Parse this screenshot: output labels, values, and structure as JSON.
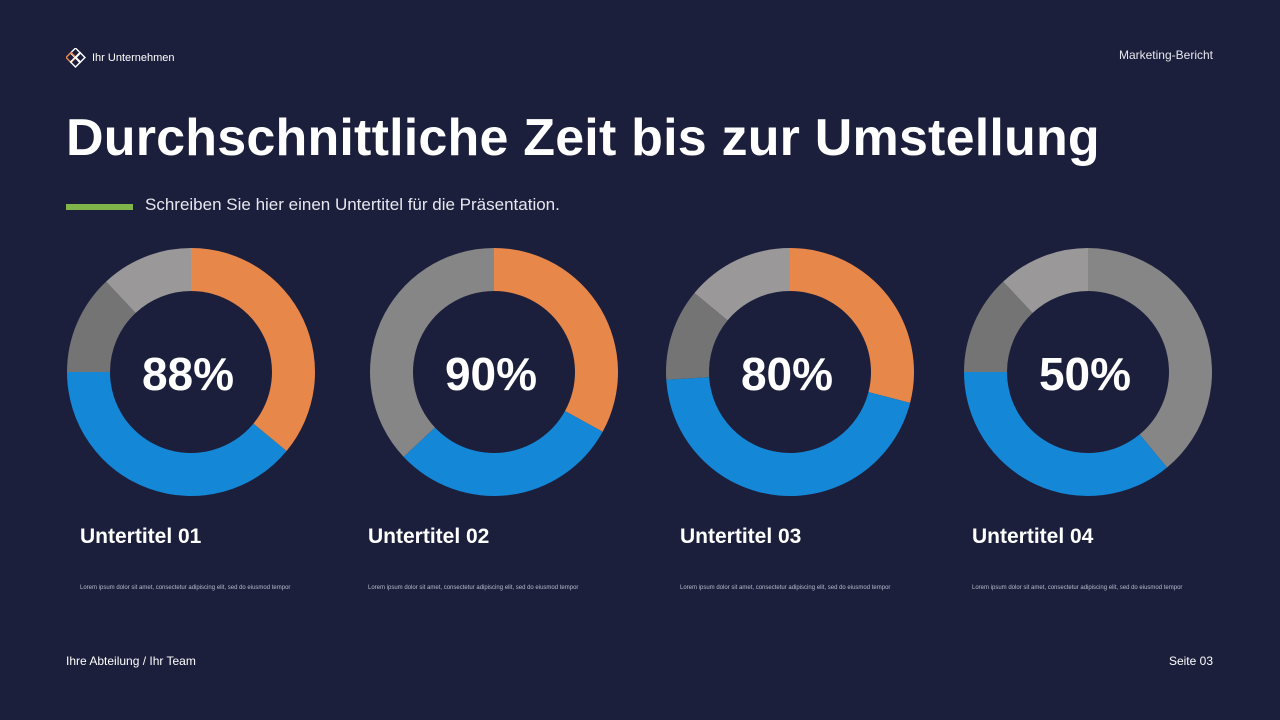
{
  "header": {
    "company": "Ihr Unternehmen",
    "report_label": "Marketing-Bericht"
  },
  "title": "Durchschnittliche Zeit bis zur Umstellung",
  "subtitle": "Schreiben Sie hier einen Untertitel für die Präsentation.",
  "colors": {
    "background": "#1c1f3b",
    "accent_green": "#7fb549",
    "orange": "#e8874a",
    "blue": "#1487d6",
    "gray_dark": "#747474",
    "gray_mid": "#868686",
    "gray_light": "#9a9898"
  },
  "chart_data": [
    {
      "type": "pie",
      "variant": "donut",
      "center_label": "88%",
      "slices": [
        {
          "color": "orange",
          "value": 36
        },
        {
          "color": "blue",
          "value": 39
        },
        {
          "color": "gray_dark",
          "value": 13
        },
        {
          "color": "gray_light",
          "value": 12
        }
      ],
      "subtitle": "Untertitel 01",
      "description": "Lorem ipsum dolor sit amet, consectetur adipiscing elit, sed do eiusmod tempor"
    },
    {
      "type": "pie",
      "variant": "donut",
      "center_label": "90%",
      "slices": [
        {
          "color": "orange",
          "value": 33
        },
        {
          "color": "blue",
          "value": 30
        },
        {
          "color": "gray_mid",
          "value": 37
        }
      ],
      "subtitle": "Untertitel 02",
      "description": "Lorem ipsum dolor sit amet, consectetur adipiscing elit, sed do eiusmod tempor"
    },
    {
      "type": "pie",
      "variant": "donut",
      "center_label": "80%",
      "slices": [
        {
          "color": "orange",
          "value": 29
        },
        {
          "color": "blue",
          "value": 45
        },
        {
          "color": "gray_dark",
          "value": 12
        },
        {
          "color": "gray_light",
          "value": 14
        }
      ],
      "subtitle": "Untertitel 03",
      "description": "Lorem ipsum dolor sit amet, consectetur adipiscing elit, sed do eiusmod tempor"
    },
    {
      "type": "pie",
      "variant": "donut",
      "center_label": "50%",
      "slices": [
        {
          "color": "gray_mid",
          "value": 39
        },
        {
          "color": "blue",
          "value": 36
        },
        {
          "color": "gray_dark",
          "value": 13
        },
        {
          "color": "gray_light",
          "value": 12
        }
      ],
      "subtitle": "Untertitel 04",
      "description": "Lorem ipsum dolor sit amet, consectetur adipiscing elit, sed do eiusmod tempor"
    }
  ],
  "footer": {
    "left": "Ihre Abteilung / Ihr Team",
    "right": "Seite 03"
  }
}
